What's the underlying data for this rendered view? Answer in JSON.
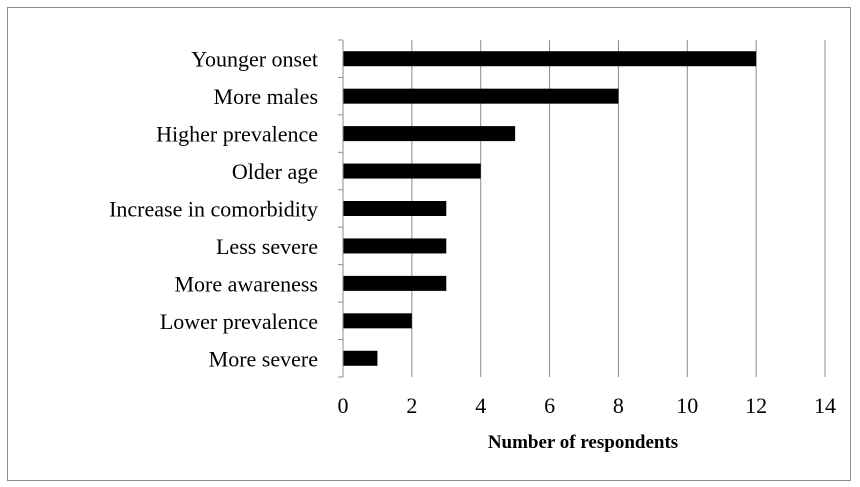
{
  "chart_data": {
    "type": "bar",
    "orientation": "horizontal",
    "categories": [
      "Younger onset",
      "More males",
      "Higher prevalence",
      "Older age",
      "Increase in comorbidity",
      "Less severe",
      "More awareness",
      "Lower prevalence",
      "More severe"
    ],
    "values": [
      12,
      8,
      5,
      4,
      3,
      3,
      3,
      2,
      1
    ],
    "title": "",
    "xlabel": "Number  of respondents",
    "ylabel": "",
    "xlim": [
      0,
      14
    ],
    "xticks": [
      "0",
      "2",
      "4",
      "6",
      "8",
      "10",
      "12",
      "14"
    ],
    "grid": "vertical",
    "legend": "none",
    "colors": {
      "bar": "#000000",
      "gridline": "#8c8c8c",
      "axis": "#8c8c8c",
      "frame": "#8c8c8c"
    }
  }
}
